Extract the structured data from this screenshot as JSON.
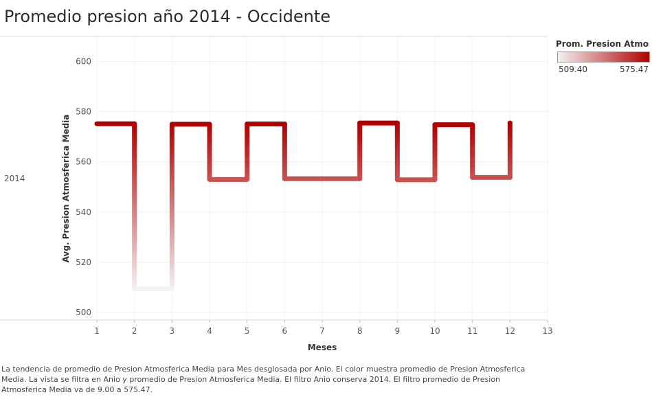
{
  "title": "Promedio presion año 2014 - Occidente",
  "row_label": "2014",
  "legend": {
    "title": "Prom. Presion Atmosfe..",
    "min_label": "509.40",
    "max_label": "575.47",
    "color_low": "#f2f2f2",
    "color_high": "#b00000"
  },
  "caption": "La tendencia de promedio de Presion Atmosferica Media para Mes desglosada por Anio.  El color muestra promedio de Presion Atmosferica Media. La vista se filtra en Anio y promedio de Presion Atmosferica Media. El filtro Anio conserva 2014. El filtro promedio de Presion Atmosferica Media va de 9.00 a 575.47.",
  "chart_data": {
    "type": "line",
    "line_style": "step",
    "x": [
      1,
      2,
      3,
      4,
      5,
      6,
      7,
      8,
      9,
      10,
      11,
      12
    ],
    "series": [
      {
        "values": [
          575.2,
          509.4,
          575.0,
          553.0,
          575.1,
          553.3,
          553.3,
          575.5,
          552.9,
          574.8,
          553.8,
          575.5
        ]
      }
    ],
    "xlabel": "Meses",
    "ylabel": "Avg. Presion Atmosferica Media",
    "xlim": [
      1,
      13
    ],
    "ylim": [
      497,
      610
    ],
    "x_ticks": [
      1,
      2,
      3,
      4,
      5,
      6,
      7,
      8,
      9,
      10,
      11,
      12,
      13
    ],
    "y_ticks": [
      500,
      520,
      540,
      560,
      580,
      600
    ],
    "color_range": [
      509.4,
      575.47
    ],
    "grid": true,
    "legend_position": "top-right"
  }
}
